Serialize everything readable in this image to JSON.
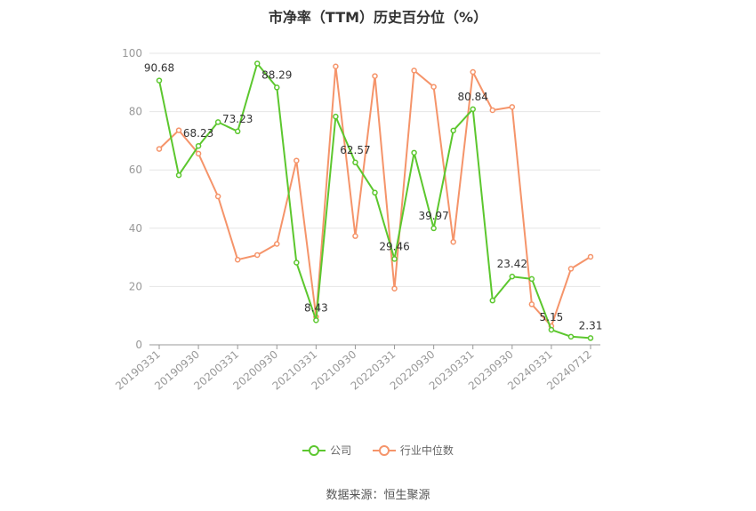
{
  "chart_data": {
    "type": "line",
    "title": "市净率（TTM）历史百分位（%）",
    "ylim": [
      0,
      100
    ],
    "yticks": [
      0,
      20,
      40,
      60,
      80,
      100
    ],
    "grid": true,
    "legend_position": "bottom",
    "x": [
      "20190331",
      "20190630",
      "20190930",
      "20191231",
      "20200331",
      "20200630",
      "20200930",
      "20201231",
      "20210331",
      "20210630",
      "20210930",
      "20211231",
      "20220331",
      "20220630",
      "20220930",
      "20221231",
      "20230331",
      "20230630",
      "20230930",
      "20231231",
      "20240331",
      "20240630",
      "20240712"
    ],
    "x_tick_labels": [
      "20190331",
      "20190930",
      "20200331",
      "20200930",
      "20210331",
      "20210930",
      "20220331",
      "20220930",
      "20230331",
      "20230930",
      "20240331",
      "20240712"
    ],
    "series": [
      {
        "name": "公司",
        "color": "#5cc72e",
        "values": [
          90.68,
          58.2,
          68.23,
          76.4,
          73.23,
          96.5,
          88.29,
          28.2,
          8.43,
          78.3,
          62.57,
          52.2,
          29.46,
          65.9,
          39.97,
          73.5,
          80.84,
          15.2,
          23.42,
          22.6,
          5.15,
          2.8,
          2.31
        ]
      },
      {
        "name": "行业中位数",
        "color": "#f5946a",
        "values": [
          67.2,
          73.6,
          65.6,
          50.9,
          29.2,
          30.8,
          34.6,
          63.2,
          9.6,
          95.5,
          37.3,
          92.2,
          19.3,
          94.1,
          88.5,
          35.3,
          93.6,
          80.5,
          81.6,
          13.9,
          6.4,
          26.1,
          30.2
        ]
      }
    ],
    "data_labels": [
      {
        "index": 0,
        "text": "90.68"
      },
      {
        "index": 2,
        "text": "68.23"
      },
      {
        "index": 4,
        "text": "73.23"
      },
      {
        "index": 6,
        "text": "88.29"
      },
      {
        "index": 8,
        "text": "8.43"
      },
      {
        "index": 10,
        "text": "62.57"
      },
      {
        "index": 12,
        "text": "29.46"
      },
      {
        "index": 14,
        "text": "39.97"
      },
      {
        "index": 16,
        "text": "80.84"
      },
      {
        "index": 18,
        "text": "23.42"
      },
      {
        "index": 20,
        "text": "5.15"
      },
      {
        "index": 22,
        "text": "2.31"
      }
    ]
  },
  "legend": {
    "company_label": "公司",
    "industry_label": "行业中位数"
  },
  "footer": {
    "source": "数据来源：恒生聚源"
  }
}
